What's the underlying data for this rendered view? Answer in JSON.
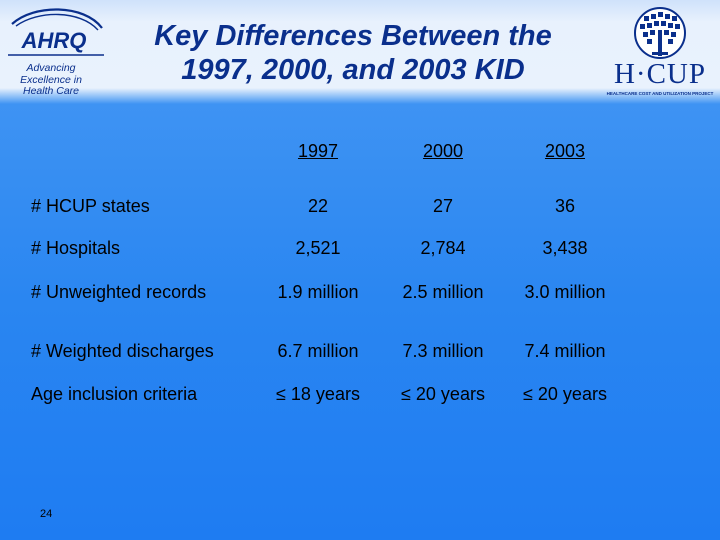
{
  "header": {
    "title_line1": "Key Differences Between the",
    "title_line2": "1997, 2000, and 2003 KID",
    "ahrq_logo_text": "AHRQ",
    "ahrq_tagline_lines": [
      "Advancing",
      "Excellence in",
      "Health Care"
    ],
    "hcup_logo_text": "H·CUP",
    "hcup_logo_subtext": "HEALTHCARE COST AND UTILIZATION PROJECT"
  },
  "table": {
    "columns": [
      "1997",
      "2000",
      "2003"
    ],
    "rows": [
      {
        "label": "# HCUP states",
        "values": [
          "22",
          "27",
          "36"
        ]
      },
      {
        "label": "# Hospitals",
        "values": [
          "2,521",
          "2,784",
          "3,438"
        ]
      },
      {
        "label": "# Unweighted records",
        "values": [
          "1.9 million",
          "2.5 million",
          "3.0 million"
        ]
      },
      {
        "label": "# Weighted discharges",
        "values": [
          "6.7 million",
          "7.3 million",
          "7.4 million"
        ]
      },
      {
        "label": "Age inclusion criteria",
        "values": [
          "≤ 18 years",
          "≤ 20 years",
          "≤ 20 years"
        ]
      }
    ]
  },
  "footer": {
    "page_number": "24"
  },
  "colors": {
    "title": "#0a2f8c",
    "background_top": "#e9f2fd",
    "background_main": "#2a86f1",
    "text": "#000000"
  }
}
